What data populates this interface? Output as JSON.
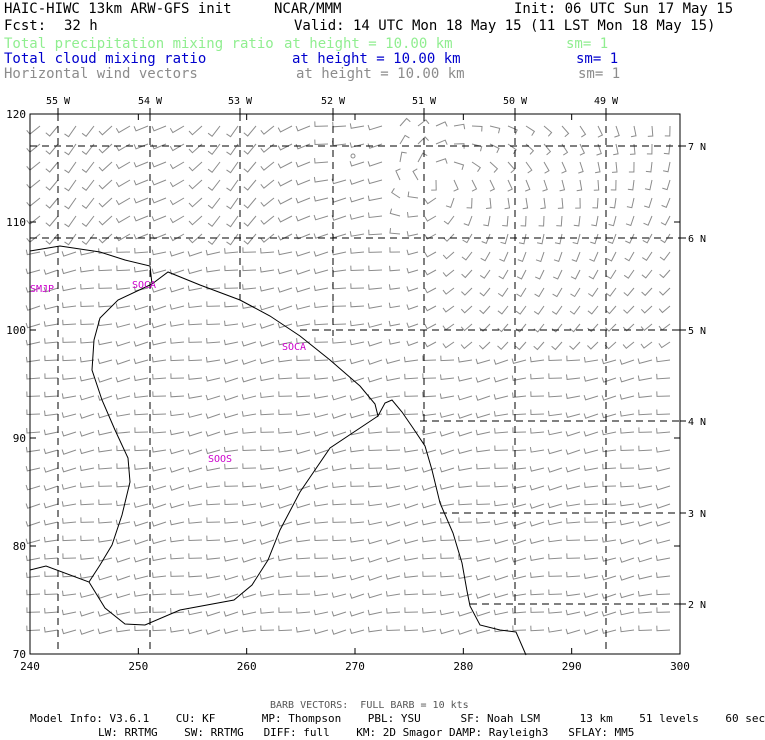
{
  "header": {
    "title_left": "HAIC-HIWC 13km ARW-GFS init",
    "title_center": "NCAR/MMM",
    "init": "Init: 06 UTC Sun 17 May 15",
    "fcst_label": "Fcst:",
    "fcst_value": "32 h",
    "valid": "Valid: 14 UTC Mon 18 May 15 (11 LST Mon 18 May 15)"
  },
  "fields": [
    {
      "name": "Total precipitation mixing ratio",
      "height": "at height = 10.00 km",
      "sm": "sm= 1",
      "color": "#90ee90"
    },
    {
      "name": "Total cloud mixing ratio",
      "height": "at height = 10.00 km",
      "sm": "sm= 1",
      "color": "#0000cd"
    },
    {
      "name": "Horizontal wind vectors",
      "height": "at height = 10.00 km",
      "sm": "sm= 1",
      "color": "#8c8c8c"
    }
  ],
  "map": {
    "x_ticks": [
      "240",
      "250",
      "260",
      "270",
      "280",
      "290",
      "300"
    ],
    "y_ticks": [
      "70",
      "80",
      "90",
      "100",
      "110",
      "120"
    ],
    "lon_labels": [
      "55 W",
      "54 W",
      "53 W",
      "52 W",
      "51 W",
      "50 W",
      "49 W"
    ],
    "lat_labels": [
      "7 N",
      "6 N",
      "5 N",
      "4 N",
      "3 N",
      "2 N"
    ],
    "stations": [
      "SMJP",
      "SOCA",
      "SOCA",
      "SOOS"
    ],
    "station_color": "#cc00cc",
    "xlim": [
      240,
      300
    ],
    "ylim": [
      70,
      120
    ]
  },
  "footer": {
    "barb_note": "BARB VECTORS:  FULL BARB = 10 kts",
    "model_line1": "Model Info: V3.6.1    CU: KF       MP: Thompson    PBL: YSU      SF: Noah LSM      13 km    51 levels    60 sec",
    "model_line2": "LW: RRTMG    SW: RRTMG   DIFF: full    KM: 2D Smagor DAMP: Rayleigh3   SFLAY: MM5"
  }
}
